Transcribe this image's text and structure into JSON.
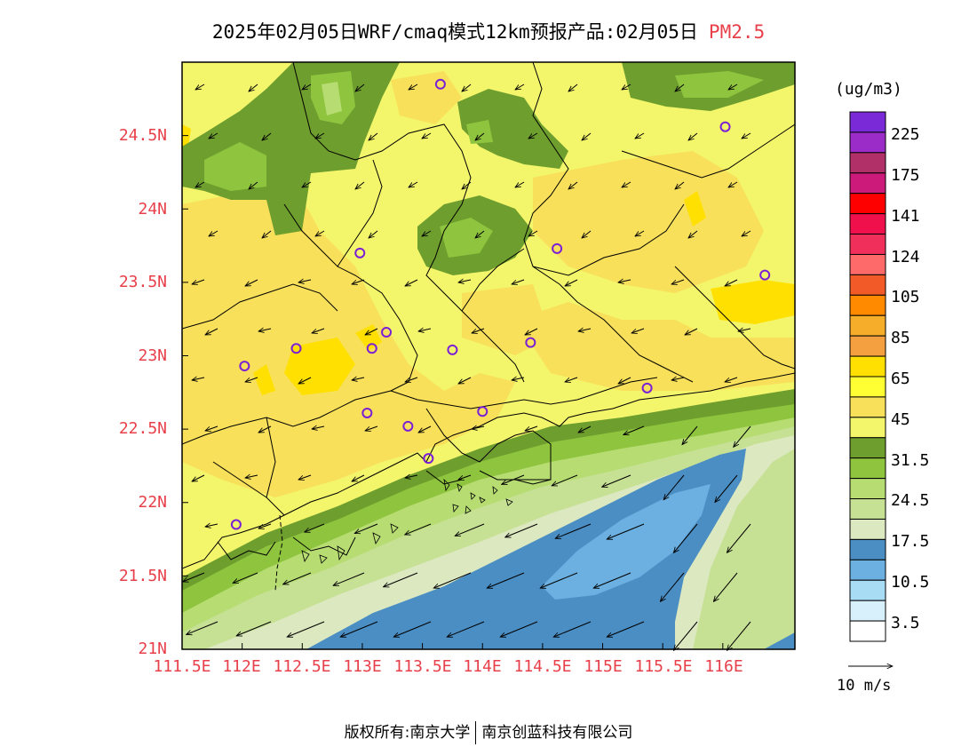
{
  "title": {
    "text": "2025年02月05日WRF/cmaq模式12km预报产品:02月05日",
    "variable": "PM2.5"
  },
  "map": {
    "region": "Guangdong (Pearl River Delta)",
    "lat_labels": [
      "24.5N",
      "24N",
      "23.5N",
      "23N",
      "22.5N",
      "22N",
      "21.5N",
      "21N"
    ],
    "lat_values": [
      24.5,
      24,
      23.5,
      23,
      22.5,
      22,
      21.5,
      21
    ],
    "lon_labels": [
      "111.5E",
      "112E",
      "112.5E",
      "113E",
      "113.5E",
      "114E",
      "114.5E",
      "115E",
      "115.5E",
      "116E"
    ],
    "lon_values": [
      111.5,
      112,
      112.5,
      113,
      113.5,
      114,
      114.5,
      115,
      115.5,
      116
    ],
    "extent": {
      "lon_min": 111.5,
      "lon_max": 116.6,
      "lat_min": 21.0,
      "lat_max": 25.0
    },
    "stations": [
      {
        "lon": 113.65,
        "lat": 24.85
      },
      {
        "lon": 116.02,
        "lat": 24.56
      },
      {
        "lon": 112.98,
        "lat": 23.7
      },
      {
        "lon": 114.62,
        "lat": 23.73
      },
      {
        "lon": 116.35,
        "lat": 23.55
      },
      {
        "lon": 112.45,
        "lat": 23.05
      },
      {
        "lon": 113.08,
        "lat": 23.05
      },
      {
        "lon": 113.2,
        "lat": 23.16
      },
      {
        "lon": 113.75,
        "lat": 23.04
      },
      {
        "lon": 114.4,
        "lat": 23.09
      },
      {
        "lon": 112.02,
        "lat": 22.93
      },
      {
        "lon": 113.04,
        "lat": 22.61
      },
      {
        "lon": 113.38,
        "lat": 22.52
      },
      {
        "lon": 114.0,
        "lat": 22.62
      },
      {
        "lon": 115.37,
        "lat": 22.78
      },
      {
        "lon": 113.55,
        "lat": 22.3
      },
      {
        "lon": 111.95,
        "lat": 21.85
      }
    ]
  },
  "legend": {
    "unit": "(ug/m3)",
    "labels": [
      "225",
      "175",
      "141",
      "124",
      "105",
      "85",
      "65",
      "45",
      "31.5",
      "24.5",
      "17.5",
      "10.5",
      "3.5"
    ],
    "colors": [
      "#7a2ad6",
      "#9b2cc8",
      "#b23068",
      "#cc1a7a",
      "#ff0000",
      "#f0104c",
      "#f0305a",
      "#fe6a6a",
      "#f25a28",
      "#ff8a00",
      "#f6ae2a",
      "#f5a040",
      "#ffe000",
      "#ffff33",
      "#f8e05a",
      "#f3f56b",
      "#6e9e2e",
      "#8fc53e",
      "#b6dc72",
      "#c6e094",
      "#dce8c0",
      "#4a8ec4",
      "#6bb0e0",
      "#a8dcf5",
      "#d8f0fc",
      "#ffffff"
    ]
  },
  "wind_key": {
    "label": "10 m/s"
  },
  "footer": {
    "copyright": "版权所有:南京大学",
    "company": "南京创蓝科技有限公司"
  }
}
